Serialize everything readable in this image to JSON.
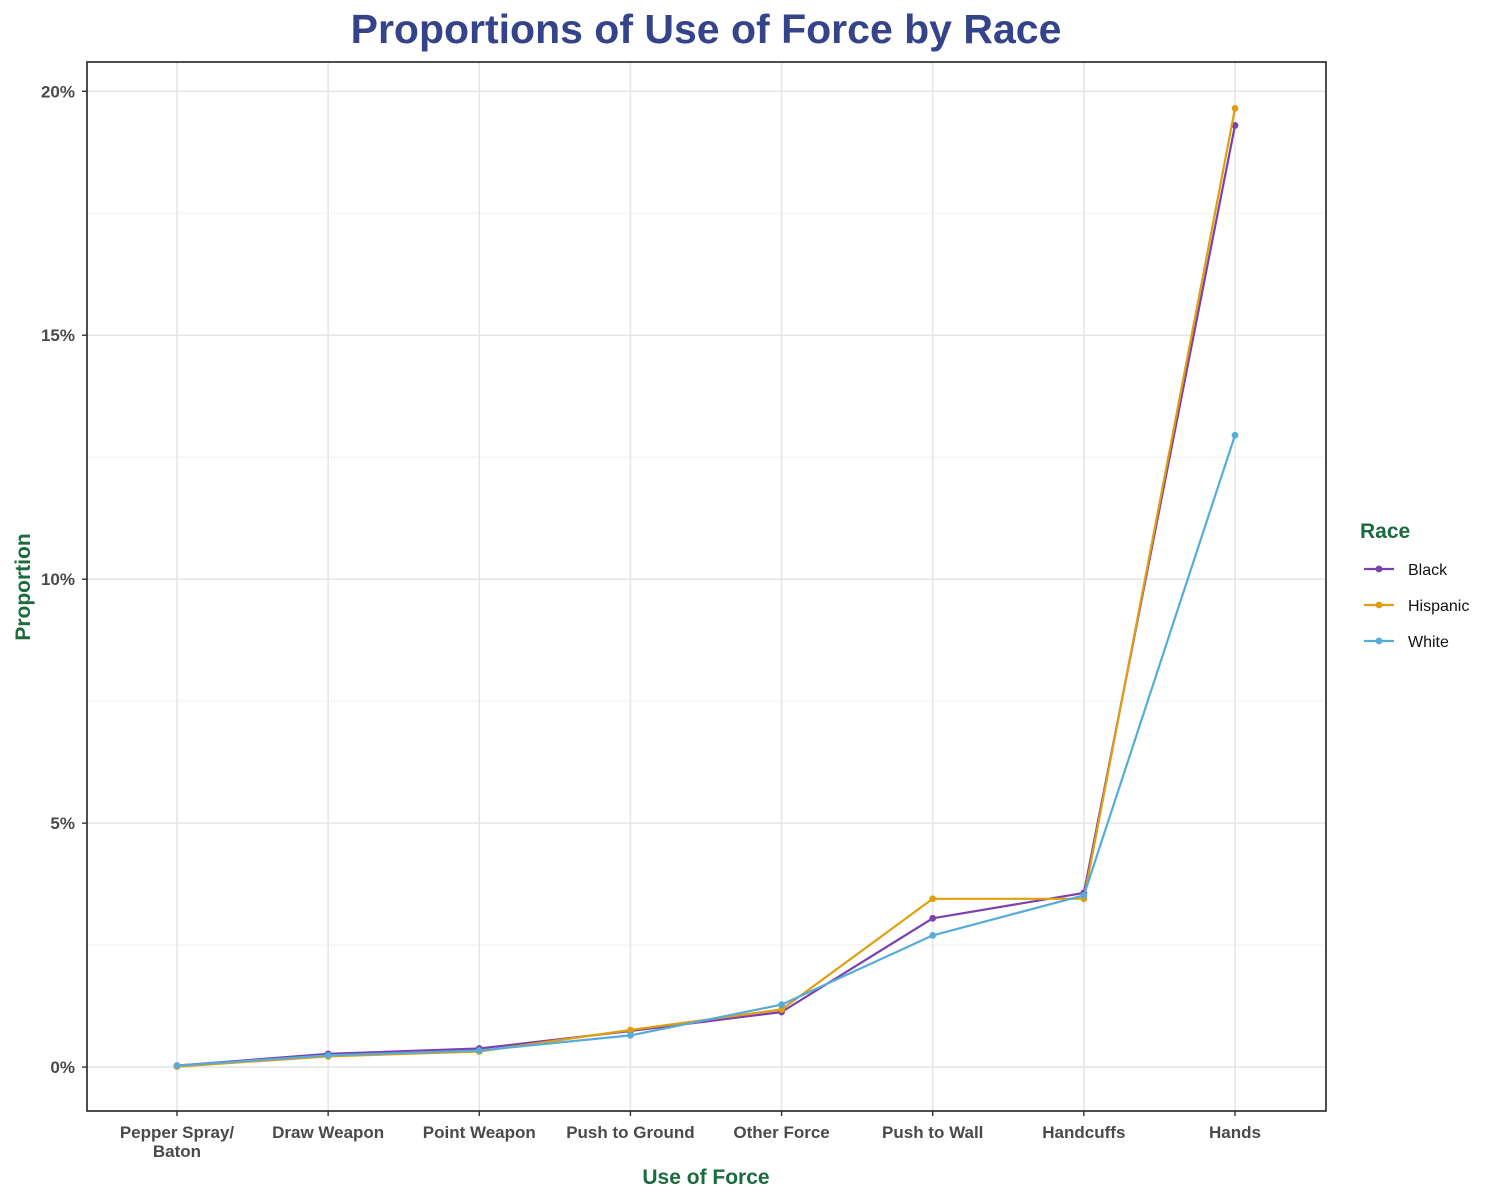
{
  "chart_data": {
    "type": "line",
    "title": "Proportions of Use of Force by Race",
    "xlabel": "Use of Force",
    "ylabel": "Proportion",
    "categories": [
      [
        "Pepper Spray/",
        "Baton"
      ],
      [
        "Draw Weapon"
      ],
      [
        "Point Weapon"
      ],
      [
        "Push to Ground"
      ],
      [
        "Other Force"
      ],
      [
        "Push to Wall"
      ],
      [
        "Handcuffs"
      ],
      [
        "Hands"
      ]
    ],
    "ylim": [
      -0.9,
      20.6
    ],
    "y_ticks": [
      0,
      5,
      10,
      15,
      20
    ],
    "y_tick_labels": [
      "0%",
      "5%",
      "10%",
      "15%",
      "20%"
    ],
    "y_unit": "percent",
    "grid": true,
    "legend": {
      "title": "Race",
      "position": "right"
    },
    "series": [
      {
        "name": "Black",
        "color": "#7b3fb0",
        "values": [
          0.03,
          0.27,
          0.38,
          0.74,
          1.13,
          3.05,
          3.57,
          19.3
        ]
      },
      {
        "name": "Hispanic",
        "color": "#e09f0e",
        "values": [
          0.01,
          0.22,
          0.32,
          0.76,
          1.18,
          3.45,
          3.45,
          19.65
        ]
      },
      {
        "name": "White",
        "color": "#56acd8",
        "values": [
          0.03,
          0.24,
          0.34,
          0.65,
          1.28,
          2.7,
          3.52,
          12.95
        ]
      }
    ]
  }
}
